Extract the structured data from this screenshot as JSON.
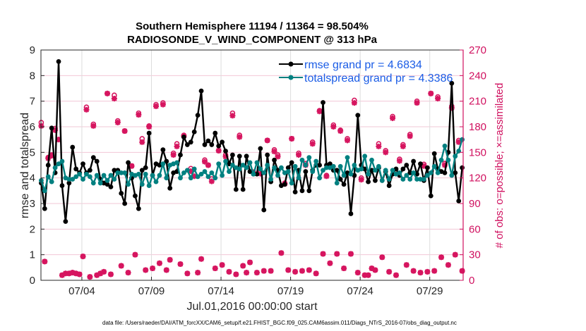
{
  "chart_data": {
    "type": "line",
    "title_lines": [
      "Southern Hemisphere 11194 / 11364 = 98.504%",
      "RADIOSONDE_V_WIND_COMPONENT @ 313 hPa"
    ],
    "xlabel": "Jul.01,2016 00:00:00 start",
    "ylabel": "rmse and totalspread",
    "y2label": "# of obs: o=possible; ×=assimilated",
    "footnote": "data file: /Users/raeder/DAI/ATM_forcXX/CAM6_setup/f.e21.FHIST_BGC.f09_025.CAM6assim.011/Diags_NTrS_2016-07/obs_diag_output.nc",
    "ylim": [
      0,
      9
    ],
    "y2lim": [
      0,
      270
    ],
    "yticks": [
      0,
      1,
      2,
      3,
      4,
      5,
      6,
      7,
      8,
      9
    ],
    "y2ticks": [
      0,
      30,
      60,
      90,
      120,
      150,
      180,
      210,
      240,
      270
    ],
    "xticks": [
      {
        "label": "07/04",
        "day": 3.5
      },
      {
        "label": "07/09",
        "day": 8.5
      },
      {
        "label": "07/14",
        "day": 13.5
      },
      {
        "label": "07/19",
        "day": 18.5
      },
      {
        "label": "07/24",
        "day": 23.5
      },
      {
        "label": "07/29",
        "day": 28.5
      }
    ],
    "xlim_days": [
      0.56,
      30.9
    ],
    "x_step_days": 0.25,
    "x_start_day": 0.58,
    "grid": true,
    "legend": {
      "position": "top-right",
      "entries": [
        "rmse grand pr = 4.6834",
        "totalspread grand pr = 4.3386"
      ]
    },
    "colors": {
      "rmse": "#000000",
      "totalspread": "#008080",
      "obs": "#d6155f",
      "legend_text": "#1a5ce6"
    },
    "series": [
      {
        "name": "rmse",
        "values": [
          3.8,
          2.8,
          4.5,
          5.95,
          4.2,
          8.55,
          3.7,
          2.3,
          3.8,
          5.2,
          4.35,
          4.2,
          4.55,
          4.2,
          4.3,
          4.8,
          4.65,
          3.95,
          3.8,
          3.75,
          3.65,
          4.3,
          4.3,
          3.4,
          3.0,
          4.6,
          4.0,
          3.3,
          2.8,
          4.3,
          4.4,
          5.75,
          4.1,
          4.55,
          4.5,
          5.1,
          4.65,
          3.6,
          4.2,
          4.25,
          4.9,
          5.6,
          5.3,
          5.4,
          5.8,
          6.45,
          7.4,
          5.3,
          5.45,
          5.3,
          5.75,
          5.25,
          5.4,
          5.05,
          4.55,
          4.9,
          3.55,
          4.85,
          3.55,
          4.85,
          4.25,
          4.15,
          4.15,
          5.15,
          2.75,
          4.9,
          3.85,
          4.7,
          4.3,
          3.7,
          3.75,
          4.4,
          4.6,
          3.45,
          4.3,
          3.5,
          4.25,
          3.5,
          4.3,
          4.5,
          4.5,
          6.95,
          4.5,
          4.55,
          4.3,
          4.3,
          3.95,
          3.75,
          4.2,
          2.6,
          4.1,
          6.45,
          4.5,
          4.35,
          3.85,
          4.3,
          3.9,
          4.4,
          3.9,
          4.25,
          3.7,
          4.15,
          4.35,
          4.1,
          4.35,
          4.5,
          4.2,
          4.65,
          4.15,
          4.55,
          3.9,
          4.4,
          3.3,
          4.95,
          4.35,
          4.25,
          4.2,
          5.0,
          7.7,
          4.2,
          3.1,
          4.4,
          5.55,
          6.35,
          3.6,
          3.05,
          3.65,
          4.1,
          4.1,
          3.85,
          3.9,
          3.6,
          4.3,
          3.55,
          4.2,
          4.5,
          3.7,
          4.6,
          4.0,
          4.4,
          4.5,
          3.55,
          4.55,
          4.4,
          5.5,
          4.9,
          5.95,
          3.7,
          3.3,
          4.3,
          4.55,
          4.65,
          3.3
        ]
      },
      {
        "name": "totalspread",
        "values": [
          3.9,
          3.5,
          4.05,
          3.85,
          4.4,
          4.55,
          4.65,
          4.0,
          3.95,
          3.95,
          4.05,
          4.15,
          3.95,
          4.15,
          4.05,
          3.8,
          4.1,
          3.8,
          4.1,
          3.9,
          4.1,
          3.95,
          4.2,
          4.2,
          4.2,
          3.75,
          4.15,
          4.1,
          4.15,
          3.75,
          4.15,
          3.7,
          4.1,
          3.85,
          4.1,
          4.55,
          4.0,
          4.5,
          4.55,
          4.6,
          4.0,
          4.2,
          4.3,
          4.0,
          4.35,
          4.05,
          4.15,
          4.25,
          4.05,
          4.2,
          4.0,
          4.55,
          4.1,
          4.65,
          4.25,
          4.5,
          4.4,
          4.35,
          4.5,
          4.4,
          4.6,
          4.15,
          4.6,
          4.35,
          4.2,
          4.5,
          3.95,
          4.4,
          4.1,
          4.4,
          4.2,
          4.25,
          3.8,
          4.45,
          4.0,
          4.7,
          4.5,
          4.8,
          4.25,
          4.65,
          4.0,
          4.3,
          4.4,
          4.4,
          4.45,
          3.8,
          4.45,
          4.1,
          4.8,
          4.15,
          4.5,
          4.3,
          4.35,
          4.85,
          4.15,
          4.7,
          4.3,
          4.45,
          3.9,
          4.3,
          3.95,
          4.3,
          4.15,
          4.2,
          3.95,
          4.1,
          3.95,
          4.2,
          3.95,
          3.95,
          3.95,
          4.1,
          4.2,
          4.45,
          4.2,
          4.7,
          5.25,
          4.7,
          4.1,
          4.85,
          5.05,
          5.5,
          6.05,
          5.8,
          5.3,
          4.3,
          4.0,
          4.4,
          4.35,
          4.2,
          3.95,
          4.15,
          3.95,
          4.0,
          3.95,
          4.05,
          3.95,
          4.0,
          3.95,
          4.05,
          4.05,
          4.15,
          4.0,
          4.25,
          4.1,
          4.4,
          4.3,
          4.35,
          4.3,
          4.2,
          4.2,
          4.6,
          4.65
        ]
      },
      {
        "name": "obs_possible",
        "values": [
          185,
          22,
          144,
          147,
          178,
          165,
          6,
          8,
          8,
          9,
          8,
          7,
          28,
          203,
          4,
          183,
          6,
          8,
          10,
          219,
          7,
          217,
          187,
          17,
          175,
          9,
          134,
          30,
          196,
          166,
          12,
          181,
          14,
          206,
          20,
          208,
          12,
          24,
          149,
          160,
          19,
          170,
          8,
          131,
          125,
          9,
          25,
          141,
          135,
          119,
          14,
          152,
          18,
          147,
          10,
          196,
          7,
          170,
          17,
          9,
          21,
          127,
          9,
          127,
          11,
          164,
          11,
          153,
          147,
          32,
          114,
          12,
          166,
          10,
          149,
          11,
          137,
          12,
          162,
          8,
          199,
          31,
          123,
          20,
          182,
          31,
          176,
          14,
          166,
          31,
          211,
          9,
          120,
          6,
          6,
          14,
          12,
          160,
          27,
          152,
          10,
          192,
          6,
          142,
          159,
          18,
          171,
          11,
          210,
          9,
          136,
          10,
          219,
          11,
          215,
          27,
          137,
          18,
          204,
          30,
          164,
          11,
          135,
          13,
          8,
          158,
          5,
          217,
          18,
          151,
          6,
          219,
          9,
          197,
          29,
          6,
          23,
          8,
          204,
          12,
          4,
          15,
          9,
          174,
          10,
          152,
          11,
          181,
          7,
          150,
          0
        ]
      },
      {
        "name": "obs_assimilated",
        "values": [
          181,
          22,
          143,
          146,
          176,
          165,
          6,
          8,
          8,
          9,
          8,
          7,
          28,
          200,
          4,
          181,
          6,
          8,
          10,
          219,
          7,
          213,
          185,
          17,
          175,
          9,
          134,
          30,
          194,
          162,
          12,
          180,
          14,
          204,
          20,
          206,
          12,
          24,
          147,
          157,
          19,
          169,
          8,
          128,
          122,
          9,
          25,
          139,
          135,
          116,
          14,
          152,
          18,
          145,
          10,
          193,
          7,
          168,
          17,
          9,
          21,
          126,
          9,
          125,
          11,
          164,
          11,
          151,
          145,
          32,
          113,
          12,
          166,
          10,
          147,
          11,
          135,
          12,
          160,
          8,
          198,
          31,
          122,
          20,
          180,
          31,
          175,
          14,
          164,
          31,
          208,
          9,
          118,
          6,
          6,
          14,
          12,
          157,
          27,
          150,
          10,
          190,
          6,
          140,
          157,
          18,
          169,
          11,
          208,
          9,
          134,
          10,
          219,
          11,
          213,
          27,
          135,
          18,
          202,
          30,
          162,
          11,
          134,
          13,
          8,
          155,
          5,
          215,
          18,
          150,
          6,
          216,
          9,
          196,
          29,
          6,
          23,
          8,
          202,
          12,
          4,
          15,
          9,
          173,
          10,
          150,
          11,
          180,
          7,
          148,
          0
        ]
      }
    ]
  }
}
